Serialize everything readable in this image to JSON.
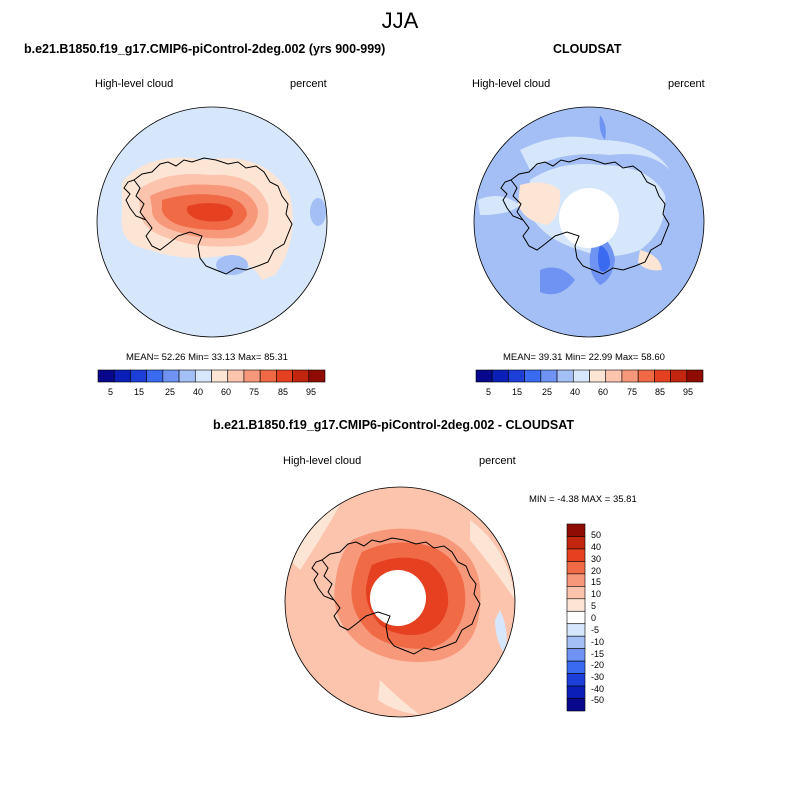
{
  "figure": {
    "title": "JJA"
  },
  "panels": [
    {
      "title": "b.e21.B1850.f19_g17.CMIP6-piControl-2deg.002 (yrs 900-999)",
      "variable": "High-level cloud",
      "units": "percent",
      "stats": {
        "mean_label": "MEAN=",
        "mean": "52.26",
        "min_label": "Min=",
        "min": "33.13",
        "max_label": "Max=",
        "max": "85.31"
      },
      "colorbar_ticks": [
        "5",
        "15",
        "25",
        "40",
        "60",
        "75",
        "85",
        "95"
      ]
    },
    {
      "title": "CLOUDSAT",
      "variable": "High-level cloud",
      "units": "percent",
      "stats": {
        "mean_label": "MEAN=",
        "mean": "39.31",
        "min_label": "Min=",
        "min": "22.99",
        "max_label": "Max=",
        "max": "58.60"
      },
      "colorbar_ticks": [
        "5",
        "15",
        "25",
        "40",
        "60",
        "75",
        "85",
        "95"
      ]
    },
    {
      "title": "b.e21.B1850.f19_g17.CMIP6-piControl-2deg.002 - CLOUDSAT",
      "variable": "High-level cloud",
      "units": "percent",
      "stats": {
        "min_label": "MIN =",
        "min": "-4.38",
        "max_label": "MAX =",
        "max": "35.81"
      },
      "colorbar_ticks": [
        "50",
        "40",
        "30",
        "20",
        "15",
        "10",
        "5",
        "0",
        "-5",
        "-10",
        "-15",
        "-20",
        "-30",
        "-40",
        "-50"
      ]
    }
  ],
  "colors": {
    "abs_scale": [
      "#08088c",
      "#0b1fb8",
      "#1c3fd8",
      "#3a6af0",
      "#6f93f2",
      "#a4bff5",
      "#d6e6fb",
      "#fde5d6",
      "#fcc4ad",
      "#f8987a",
      "#f06a45",
      "#e54121",
      "#c3260f",
      "#8e0c03"
    ],
    "diff_scale": [
      "#8e0c03",
      "#c3260f",
      "#e54121",
      "#f06a45",
      "#f8987a",
      "#fcc4ad",
      "#fde5d6",
      "#ffffff",
      "#d6e6fb",
      "#a4bff5",
      "#6f93f2",
      "#3a6af0",
      "#1c3fd8",
      "#0b1fb8",
      "#08088c"
    ]
  }
}
